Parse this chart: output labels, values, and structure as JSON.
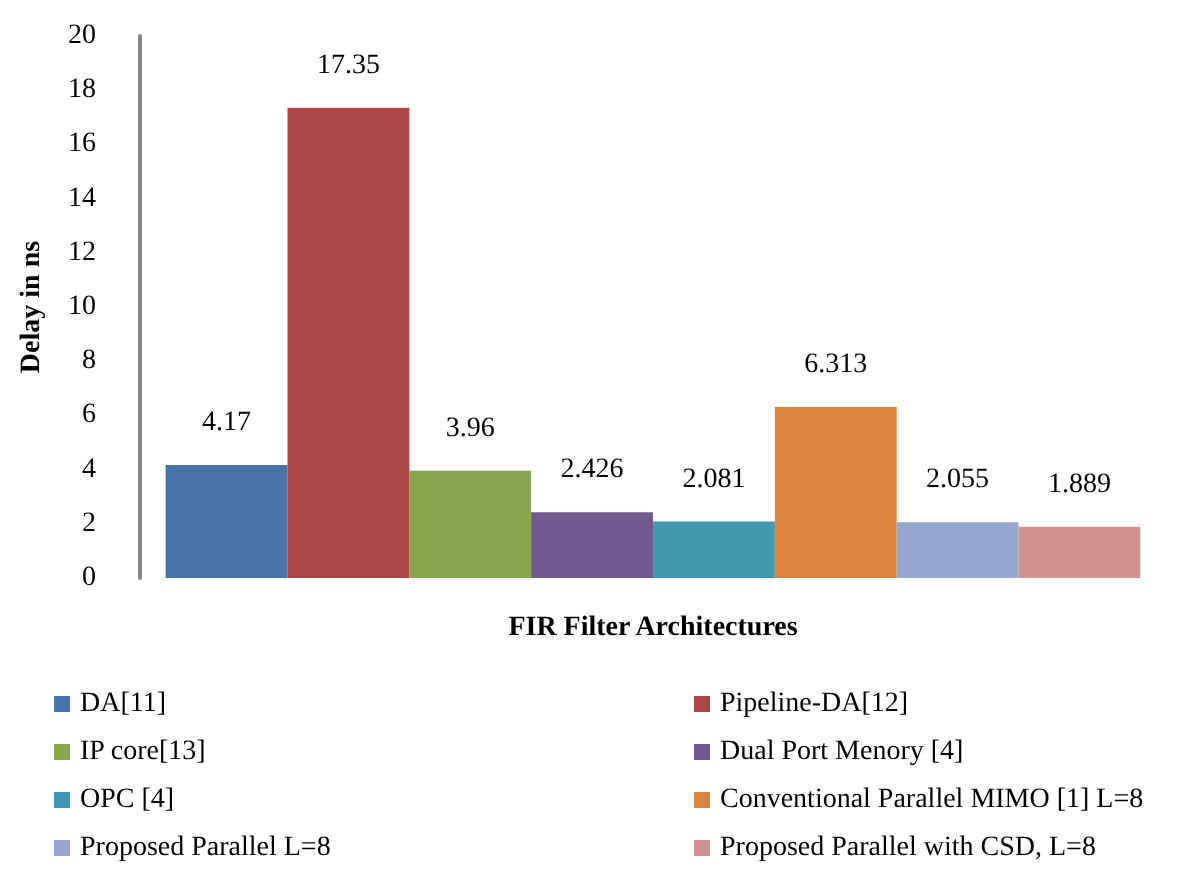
{
  "chart_data": {
    "type": "bar",
    "xlabel": "FIR Filter Architectures",
    "ylabel": "Delay in ns",
    "categories": [
      null
    ],
    "series": [
      {
        "name": "DA[11]",
        "color": "#4572a7",
        "values": [
          4.17
        ]
      },
      {
        "name": "Pipeline-DA[12]",
        "color": "#aa4643",
        "values": [
          17.35
        ]
      },
      {
        "name": "IP core[13]",
        "color": "#89a54e",
        "values": [
          3.96
        ]
      },
      {
        "name": "Dual Port Menory [4]",
        "color": "#71588f",
        "values": [
          2.426
        ]
      },
      {
        "name": "OPC [4]",
        "color": "#4198af",
        "values": [
          2.081
        ]
      },
      {
        "name": "Conventional Parallel MIMO [1] L=8",
        "color": "#db843d",
        "values": [
          6.313
        ]
      },
      {
        "name": "Proposed Parallel L=8",
        "color": "#93a9cf",
        "values": [
          2.055
        ]
      },
      {
        "name": "Proposed Parallel with CSD, L=8",
        "color": "#d19392",
        "values": [
          1.889
        ]
      }
    ],
    "ylim": [
      0,
      20
    ],
    "yticks": [
      0,
      2,
      4,
      6,
      8,
      10,
      12,
      14,
      16,
      18,
      20
    ],
    "data_labels": true,
    "grid": false,
    "legend": "bottom"
  }
}
